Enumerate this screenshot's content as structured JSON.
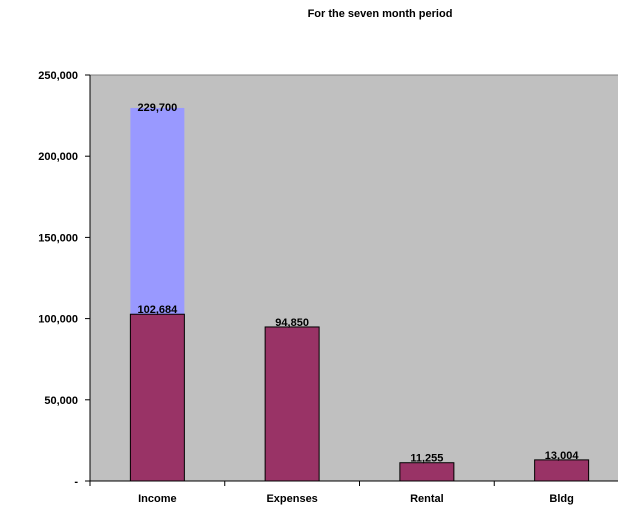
{
  "chart_data": {
    "type": "bar",
    "title": "For the seven month period",
    "xlabel": "",
    "ylabel": "",
    "ylim": [
      0,
      250000
    ],
    "yticks": [
      0,
      50000,
      100000,
      150000,
      200000,
      250000
    ],
    "ytick_labels": [
      "-",
      "50,000",
      "100,000",
      "150,000",
      "200,000",
      "250,000"
    ],
    "categories": [
      "Income",
      "Expenses",
      "Rental",
      "Bldg"
    ],
    "series": [
      {
        "values": [
          102684,
          94850,
          11255,
          13004
        ],
        "value_labels": [
          "102,684",
          "94,850",
          "11,255",
          "13,004"
        ],
        "color": "#993366"
      },
      {
        "values": [
          229700,
          null,
          null,
          null
        ],
        "value_labels": [
          "229,700",
          null,
          null,
          null
        ],
        "color": "#9999ff"
      }
    ],
    "plot_background": "#c0c0c0",
    "grid": false,
    "legend": "none"
  }
}
